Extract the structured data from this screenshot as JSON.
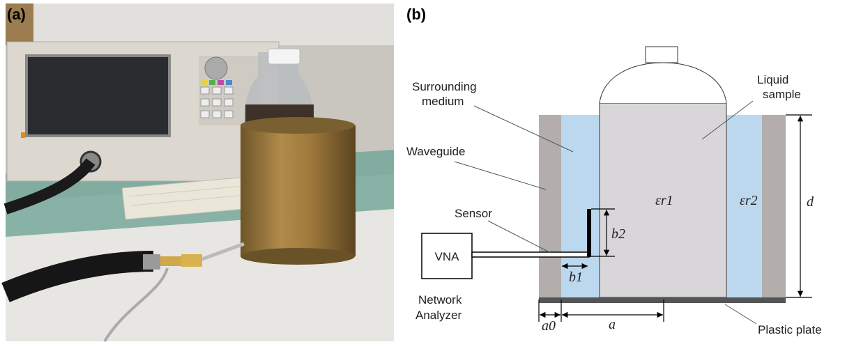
{
  "panel_a": {
    "label": "(a)"
  },
  "panel_b": {
    "label": "(b)",
    "labels": {
      "surrounding_medium": [
        "Surrounding",
        "medium"
      ],
      "liquid_sample": [
        "Liquid",
        "sample"
      ],
      "waveguide": "Waveguide",
      "sensor": "Sensor",
      "vna": "VNA",
      "network_analyzer": [
        "Network",
        "Analyzer"
      ],
      "plastic_plate": "Plastic plate",
      "eps_r1": "εr1",
      "eps_r2": "εr2",
      "d": "d",
      "b1": "b1",
      "b2": "b2",
      "a0": "a0",
      "a": "a"
    }
  }
}
